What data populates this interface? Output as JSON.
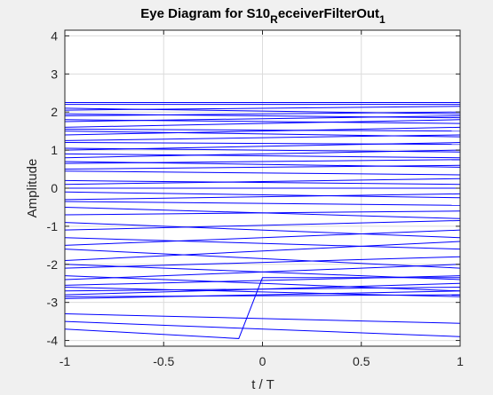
{
  "chart_data": {
    "type": "line",
    "title": {
      "part1": "Eye Diagram for S10",
      "sub1": "R",
      "part2": "eceiverFilterOut",
      "sub2": "1"
    },
    "xlabel": "t / T",
    "ylabel": "Amplitude",
    "xlim": [
      -1,
      1
    ],
    "ylim": [
      -4.15,
      4.15
    ],
    "xticks": [
      -1,
      -0.5,
      0,
      0.5,
      1
    ],
    "xtick_labels": [
      "-1",
      "-0.5",
      "0",
      "0.5",
      "1"
    ],
    "yticks": [
      -4,
      -3,
      -2,
      -1,
      0,
      1,
      2,
      3,
      4
    ],
    "ytick_labels": [
      "-4",
      "-3",
      "-2",
      "-1",
      "0",
      "1",
      "2",
      "3",
      "4"
    ],
    "grid": true,
    "line_color": "#0000ff",
    "series": [
      {
        "x": [
          -1,
          1
        ],
        "y": [
          2.25,
          2.25
        ]
      },
      {
        "x": [
          -1,
          1
        ],
        "y": [
          2.2,
          2.2
        ]
      },
      {
        "x": [
          -1,
          1
        ],
        "y": [
          2.1,
          1.95
        ]
      },
      {
        "x": [
          -1,
          1
        ],
        "y": [
          2.05,
          2.15
        ]
      },
      {
        "x": [
          -1,
          1
        ],
        "y": [
          1.95,
          1.85
        ]
      },
      {
        "x": [
          -1,
          1
        ],
        "y": [
          1.9,
          2.0
        ]
      },
      {
        "x": [
          -1,
          1
        ],
        "y": [
          1.8,
          1.7
        ]
      },
      {
        "x": [
          -1,
          1
        ],
        "y": [
          1.75,
          1.9
        ]
      },
      {
        "x": [
          -1,
          1
        ],
        "y": [
          1.6,
          1.8
        ]
      },
      {
        "x": [
          -1,
          1
        ],
        "y": [
          1.55,
          1.5
        ]
      },
      {
        "x": [
          -1,
          1
        ],
        "y": [
          1.5,
          1.35
        ]
      },
      {
        "x": [
          -1,
          1
        ],
        "y": [
          1.4,
          1.6
        ]
      },
      {
        "x": [
          -1,
          1
        ],
        "y": [
          1.25,
          1.4
        ]
      },
      {
        "x": [
          -1,
          1
        ],
        "y": [
          1.2,
          1.15
        ]
      },
      {
        "x": [
          -1,
          1
        ],
        "y": [
          1.05,
          0.95
        ]
      },
      {
        "x": [
          -1,
          1
        ],
        "y": [
          1.0,
          1.2
        ]
      },
      {
        "x": [
          -1,
          1
        ],
        "y": [
          0.9,
          0.8
        ]
      },
      {
        "x": [
          -1,
          1
        ],
        "y": [
          0.8,
          1.0
        ]
      },
      {
        "x": [
          -1,
          1
        ],
        "y": [
          0.7,
          0.55
        ]
      },
      {
        "x": [
          -1,
          1
        ],
        "y": [
          0.65,
          0.75
        ]
      },
      {
        "x": [
          -1,
          1
        ],
        "y": [
          0.5,
          0.6
        ]
      },
      {
        "x": [
          -1,
          1
        ],
        "y": [
          0.45,
          0.35
        ]
      },
      {
        "x": [
          -1,
          1
        ],
        "y": [
          0.2,
          0.1
        ]
      },
      {
        "x": [
          -1,
          1
        ],
        "y": [
          0.1,
          0.25
        ]
      },
      {
        "x": [
          -1,
          1
        ],
        "y": [
          0.0,
          0.0
        ]
      },
      {
        "x": [
          -1,
          1
        ],
        "y": [
          -0.1,
          -0.25
        ]
      },
      {
        "x": [
          -1,
          1
        ],
        "y": [
          -0.3,
          -0.15
        ]
      },
      {
        "x": [
          -1,
          1
        ],
        "y": [
          -0.35,
          -0.45
        ]
      },
      {
        "x": [
          -1,
          1
        ],
        "y": [
          -0.5,
          -0.8
        ]
      },
      {
        "x": [
          -1,
          1
        ],
        "y": [
          -0.7,
          -0.6
        ]
      },
      {
        "x": [
          -1,
          1
        ],
        "y": [
          -0.9,
          -1.3
        ]
      },
      {
        "x": [
          -1,
          1
        ],
        "y": [
          -1.1,
          -0.85
        ]
      },
      {
        "x": [
          -1,
          1
        ],
        "y": [
          -1.3,
          -1.6
        ]
      },
      {
        "x": [
          -1,
          1
        ],
        "y": [
          -1.5,
          -1.1
        ]
      },
      {
        "x": [
          -1,
          1
        ],
        "y": [
          -1.6,
          -2.1
        ]
      },
      {
        "x": [
          -1,
          1
        ],
        "y": [
          -1.9,
          -1.4
        ]
      },
      {
        "x": [
          -1,
          1
        ],
        "y": [
          -2.0,
          -2.4
        ]
      },
      {
        "x": [
          -1,
          1
        ],
        "y": [
          -2.1,
          -1.8
        ]
      },
      {
        "x": [
          -1,
          1
        ],
        "y": [
          -2.3,
          -2.7
        ]
      },
      {
        "x": [
          -1,
          1
        ],
        "y": [
          -2.4,
          -2.0
        ]
      },
      {
        "x": [
          -1,
          1
        ],
        "y": [
          -2.55,
          -2.3
        ]
      },
      {
        "x": [
          -1,
          1
        ],
        "y": [
          -2.6,
          -2.85
        ]
      },
      {
        "x": [
          -1,
          1
        ],
        "y": [
          -2.7,
          -2.6
        ]
      },
      {
        "x": [
          -1,
          1
        ],
        "y": [
          -2.8,
          -2.5
        ]
      },
      {
        "x": [
          -1,
          1
        ],
        "y": [
          -2.85,
          -2.8
        ]
      },
      {
        "x": [
          -1,
          1
        ],
        "y": [
          -2.9,
          -2.7
        ]
      },
      {
        "x": [
          -1,
          1
        ],
        "y": [
          -3.5,
          -3.9
        ]
      },
      {
        "x": [
          -1,
          1
        ],
        "y": [
          -3.3,
          -3.55
        ]
      },
      {
        "x": [
          -1,
          -0.12,
          0,
          1
        ],
        "y": [
          -3.7,
          -3.95,
          -2.35,
          -2.35
        ]
      }
    ]
  }
}
